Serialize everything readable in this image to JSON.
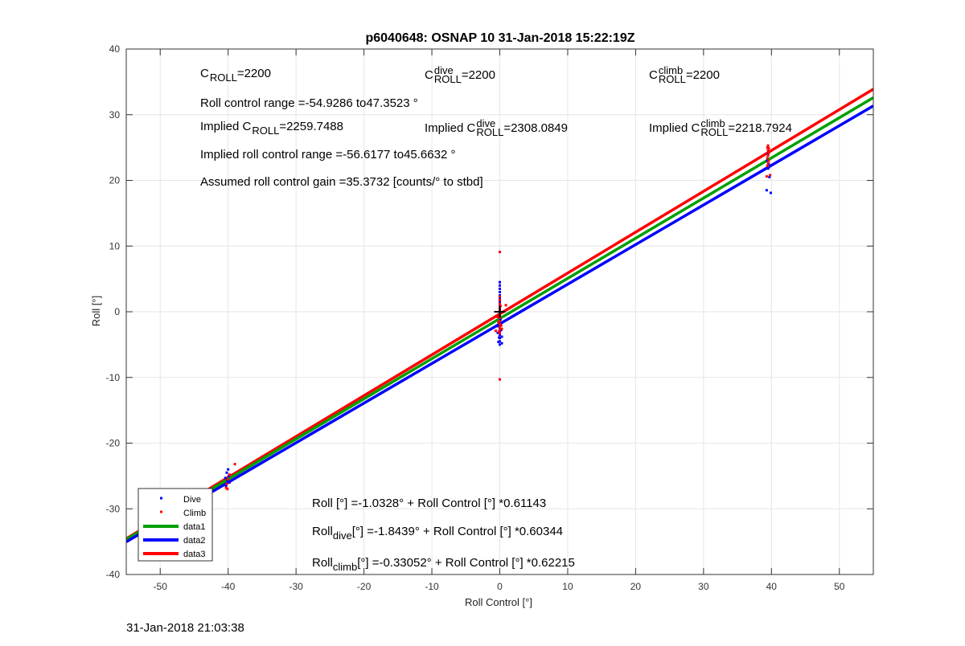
{
  "chart_data": {
    "type": "scatter",
    "title": "p6040648: OSNAP 10 31-Jan-2018 15:22:19Z",
    "xlabel": "Roll Control [°]",
    "ylabel": "Roll [°]",
    "xlim": [
      -55,
      55
    ],
    "ylim": [
      -40,
      40
    ],
    "xticks": [
      -50,
      -40,
      -30,
      -20,
      -10,
      0,
      10,
      20,
      30,
      40,
      50
    ],
    "yticks": [
      -40,
      -30,
      -20,
      -10,
      0,
      10,
      20,
      30,
      40
    ],
    "grid": true,
    "legend_position": "bottom-left",
    "colors": {
      "dive": "#0000ff",
      "climb": "#ff0000",
      "data1": "#00a000",
      "data2": "#0000ff",
      "data3": "#ff0000",
      "center_marker": "#000000"
    },
    "series": [
      {
        "name": "Dive",
        "kind": "points",
        "color": "#0000ff",
        "points": [
          [
            -40.2,
            -24.5
          ],
          [
            -40.4,
            -25.3
          ],
          [
            -40.1,
            -25.8
          ],
          [
            -39.8,
            -26.0
          ],
          [
            -40.3,
            -26.5
          ],
          [
            -39.9,
            -25.0
          ],
          [
            -40.0,
            -24.0
          ],
          [
            0,
            4.5
          ],
          [
            0,
            4.0
          ],
          [
            0,
            3.5
          ],
          [
            0,
            3.0
          ],
          [
            0,
            2.5
          ],
          [
            0,
            2.0
          ],
          [
            0,
            1.5
          ],
          [
            0,
            1.0
          ],
          [
            0,
            0.5
          ],
          [
            0,
            0
          ],
          [
            0,
            -0.5
          ],
          [
            0,
            -1.0
          ],
          [
            0,
            -1.5
          ],
          [
            0,
            -2.0
          ],
          [
            0,
            -2.5
          ],
          [
            0,
            -3.0
          ],
          [
            0,
            -3.5
          ],
          [
            0,
            -4.0
          ],
          [
            0,
            -4.5
          ],
          [
            0,
            -5.0
          ],
          [
            -0.3,
            -3.2
          ],
          [
            0.3,
            -3.8
          ],
          [
            -0.2,
            -4.6
          ],
          [
            0.2,
            -2.8
          ],
          [
            0.1,
            -1.2
          ],
          [
            -0.1,
            -3.9
          ],
          [
            0.3,
            -4.8
          ],
          [
            -0.3,
            -2.2
          ],
          [
            39.4,
            23.0
          ],
          [
            39.6,
            22.5
          ],
          [
            39.5,
            21.8
          ],
          [
            39.7,
            20.5
          ],
          [
            39.3,
            18.5
          ],
          [
            39.9,
            18.1
          ],
          [
            39.5,
            24.0
          ],
          [
            39.6,
            22.0
          ]
        ]
      },
      {
        "name": "Climb",
        "kind": "points",
        "color": "#ff0000",
        "points": [
          [
            -39.0,
            -23.2
          ],
          [
            -40.1,
            -27.0
          ],
          [
            -40.3,
            -26.8
          ],
          [
            -40.0,
            -25.5
          ],
          [
            -39.8,
            -24.8
          ],
          [
            -40.2,
            -26.2
          ],
          [
            0,
            9.1
          ],
          [
            0,
            -10.3
          ],
          [
            0,
            2.3
          ],
          [
            0,
            1.8
          ],
          [
            0,
            1.2
          ],
          [
            0,
            0.6
          ],
          [
            0,
            0.2
          ],
          [
            0,
            -0.4
          ],
          [
            0,
            -0.9
          ],
          [
            0,
            -1.4
          ],
          [
            0,
            -1.9
          ],
          [
            0,
            -2.4
          ],
          [
            0,
            -2.8
          ],
          [
            0,
            -3.3
          ],
          [
            -0.2,
            -1.6
          ],
          [
            0.2,
            -2.1
          ],
          [
            -0.3,
            -0.8
          ],
          [
            0.3,
            -2.6
          ],
          [
            -0.1,
            -3.0
          ],
          [
            0.1,
            0.9
          ],
          [
            0.9,
            1.0
          ],
          [
            -0.6,
            -2.9
          ],
          [
            39.4,
            25.0
          ],
          [
            39.5,
            24.6
          ],
          [
            39.6,
            24.2
          ],
          [
            39.5,
            23.8
          ],
          [
            39.4,
            23.4
          ],
          [
            39.6,
            23.0
          ],
          [
            39.5,
            22.6
          ],
          [
            39.4,
            22.2
          ],
          [
            39.6,
            24.9
          ],
          [
            39.8,
            20.8
          ],
          [
            39.3,
            20.6
          ],
          [
            39.5,
            25.3
          ]
        ]
      },
      {
        "name": "data1",
        "kind": "line",
        "color": "#00a000",
        "intercept": -1.0328,
        "slope": 0.61143
      },
      {
        "name": "data2",
        "kind": "line",
        "color": "#0000ff",
        "intercept": -1.8439,
        "slope": 0.60344
      },
      {
        "name": "data3",
        "kind": "line",
        "color": "#ff0000",
        "intercept": -0.33052,
        "slope": 0.62215
      }
    ],
    "annotations": {
      "c_roll": {
        "base": "C",
        "sub": "ROLL",
        "rest": "=2200"
      },
      "c_roll_dive": {
        "base": "C",
        "sup": "dive",
        "sub": "ROLL",
        "rest": " =2200"
      },
      "c_roll_climb": {
        "base": "C",
        "sup": "climb",
        "sub": "ROLL",
        "rest": " =2200"
      },
      "roll_control_range": "Roll control range =-54.9286 to47.3523 °",
      "implied_c_roll": {
        "prefix": "Implied C",
        "sub": "ROLL",
        "rest": " =2259.7488"
      },
      "implied_c_roll_dive": {
        "prefix": "Implied C",
        "sup": "dive",
        "sub": "ROLL",
        "rest": " =2308.0849"
      },
      "implied_c_roll_climb": {
        "prefix": "Implied C",
        "sup": "climb",
        "sub": "ROLL",
        "rest": "=2218.7924"
      },
      "implied_range": "Implied roll control range =-56.6177 to45.6632 °",
      "assumed_gain": "Assumed roll control gain =35.3732 [counts/° to stbd]",
      "fit_all": "Roll [°] =-1.0328° + Roll Control [°] *0.61143",
      "fit_dive": {
        "base": "Roll",
        "sub": "dive",
        "rest": " [°] =-1.8439° + Roll Control [°] *0.60344"
      },
      "fit_climb": {
        "base": "Roll",
        "sub": "climb",
        "rest": " [°] =-0.33052° + Roll Control [°] *0.62215"
      }
    },
    "legend": [
      {
        "label": "Dive",
        "kind": "point",
        "color": "#0000ff"
      },
      {
        "label": "Climb",
        "kind": "point",
        "color": "#ff0000"
      },
      {
        "label": "data1",
        "kind": "line",
        "color": "#00a000"
      },
      {
        "label": "data2",
        "kind": "line",
        "color": "#0000ff"
      },
      {
        "label": "data3",
        "kind": "line",
        "color": "#ff0000"
      }
    ]
  },
  "footer": {
    "timestamp": "31-Jan-2018 21:03:38"
  }
}
